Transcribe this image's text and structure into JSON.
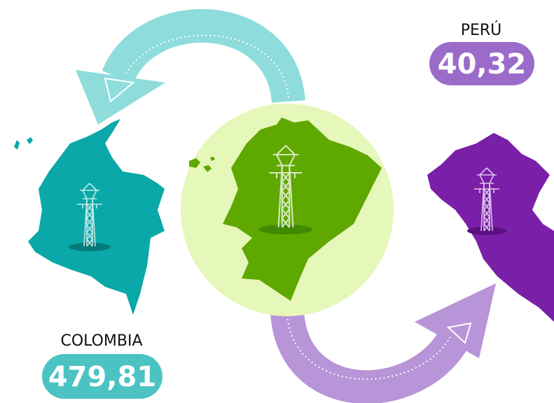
{
  "colombia": {
    "label": "COLOMBIA",
    "value": "479,81"
  },
  "peru": {
    "label": "PERÚ",
    "value": "40,32"
  }
}
